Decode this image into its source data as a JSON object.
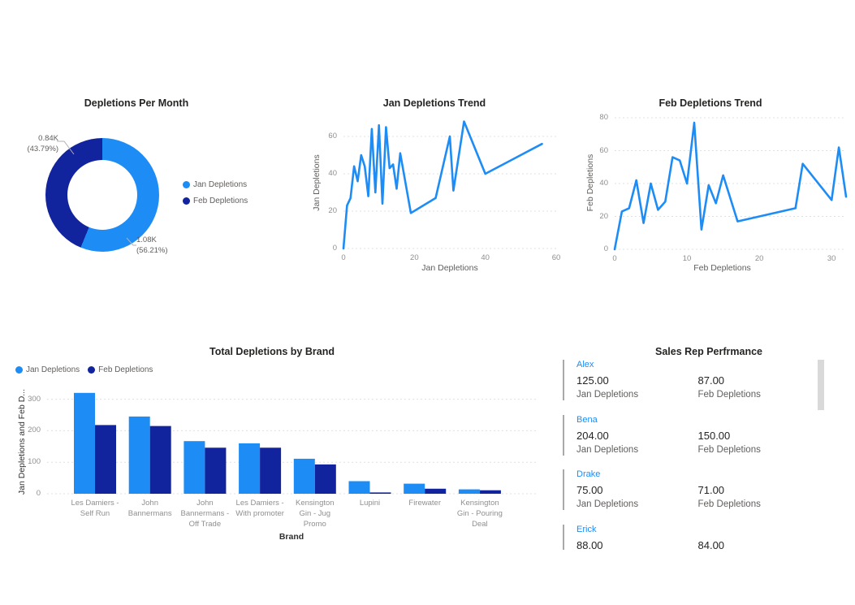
{
  "colors": {
    "jan_blue": "#1e8cf5",
    "feb_navy": "#12239e",
    "title_text": "#252423",
    "axis_gray": "#8f8f8f",
    "label_gray": "#605e5c",
    "gridline": "#e0e0e0",
    "scrollbar": "#d9d9d9"
  },
  "sales": {
    "title": "Sales Rep Perfrmance",
    "jan_label": "Jan Depletions",
    "feb_label": "Feb Depletions",
    "reps": [
      {
        "name": "Alex",
        "jan": "125.00",
        "feb": "87.00"
      },
      {
        "name": "Bena",
        "jan": "204.00",
        "feb": "150.00"
      },
      {
        "name": "Drake",
        "jan": "75.00",
        "feb": "71.00"
      },
      {
        "name": "Erick",
        "jan": "88.00",
        "feb": "84.00"
      }
    ]
  },
  "chart_data": [
    {
      "id": "depletions-per-month",
      "type": "pie",
      "donut": true,
      "title": "Depletions Per Month",
      "labels": [
        "Jan Depletions",
        "Feb Depletions"
      ],
      "values": [
        1080,
        840
      ],
      "percents": [
        56.21,
        43.79
      ],
      "colors": [
        "#1e8cf5",
        "#12239e"
      ],
      "legend_position": "right",
      "callouts": [
        {
          "series": "Feb Depletions",
          "value": "0.84K",
          "pct": "(43.79%)"
        },
        {
          "series": "Jan Depletions",
          "value": "1.08K",
          "pct": "(56.21%)"
        }
      ]
    },
    {
      "id": "jan-depletions-trend",
      "type": "line",
      "title": "Jan Depletions Trend",
      "xlabel": "Jan Depletions",
      "ylabel": "Jan Depletions",
      "xlim": [
        0,
        60
      ],
      "ylim": [
        0,
        70
      ],
      "xticks": [
        0,
        20,
        40,
        60
      ],
      "yticks": [
        0,
        20,
        40,
        60
      ],
      "grid": true,
      "color": "#1e8cf5",
      "points": [
        [
          0,
          0
        ],
        [
          1,
          23
        ],
        [
          2,
          27
        ],
        [
          3,
          44
        ],
        [
          4,
          36
        ],
        [
          5,
          50
        ],
        [
          6,
          44
        ],
        [
          7,
          28
        ],
        [
          8,
          64
        ],
        [
          9,
          30
        ],
        [
          10,
          66
        ],
        [
          11,
          24
        ],
        [
          12,
          65
        ],
        [
          13,
          43
        ],
        [
          14,
          45
        ],
        [
          15,
          32
        ],
        [
          16,
          51
        ],
        [
          19,
          19
        ],
        [
          26,
          27
        ],
        [
          30,
          60
        ],
        [
          31,
          31
        ],
        [
          34,
          68
        ],
        [
          40,
          40
        ],
        [
          56,
          56
        ]
      ]
    },
    {
      "id": "feb-depletions-trend",
      "type": "line",
      "title": "Feb Depletions Trend",
      "xlabel": "Feb Depletions",
      "ylabel": "Feb Depletions",
      "xlim": [
        0,
        32
      ],
      "ylim": [
        0,
        80
      ],
      "xticks": [
        0,
        10,
        20,
        30
      ],
      "yticks": [
        0,
        20,
        40,
        60,
        80
      ],
      "grid": true,
      "color": "#1e8cf5",
      "points": [
        [
          0,
          0
        ],
        [
          1,
          23
        ],
        [
          2,
          25
        ],
        [
          3,
          42
        ],
        [
          4,
          16
        ],
        [
          5,
          40
        ],
        [
          6,
          24
        ],
        [
          7,
          29
        ],
        [
          8,
          56
        ],
        [
          9,
          54
        ],
        [
          10,
          40
        ],
        [
          11,
          77
        ],
        [
          12,
          12
        ],
        [
          13,
          39
        ],
        [
          14,
          28
        ],
        [
          15,
          45
        ],
        [
          17,
          17
        ],
        [
          25,
          25
        ],
        [
          26,
          52
        ],
        [
          30,
          30
        ],
        [
          31,
          62
        ],
        [
          32,
          32
        ]
      ]
    },
    {
      "id": "total-depletions-by-brand",
      "type": "bar",
      "title": "Total Depletions by Brand",
      "xlabel": "Brand",
      "ylabel": "Jan Depletions and Feb D...",
      "ylim": [
        0,
        335
      ],
      "yticks": [
        0,
        100,
        200,
        300
      ],
      "grid": true,
      "legend_position": "top-left",
      "categories": [
        "Les Damiers - Self Run",
        "John Bannermans",
        "John Bannermans - Off Trade",
        "Les Damiers - With promoter",
        "Kensington Gin - Jug Promo",
        "Lupini",
        "Firewater",
        "Kensington Gin - Pouring Deal"
      ],
      "category_lines": [
        [
          "Les Damiers -",
          "Self Run"
        ],
        [
          "John",
          "Bannermans"
        ],
        [
          "John",
          "Bannermans -",
          "Off Trade"
        ],
        [
          "Les Damiers -",
          "With promoter"
        ],
        [
          "Kensington",
          "Gin - Jug",
          "Promo"
        ],
        [
          "Lupini"
        ],
        [
          "Firewater"
        ],
        [
          "Kensington",
          "Gin - Pouring",
          "Deal"
        ]
      ],
      "series": [
        {
          "name": "Jan Depletions",
          "color": "#1e8cf5",
          "values": [
            320,
            245,
            167,
            160,
            111,
            40,
            32,
            14
          ]
        },
        {
          "name": "Feb Depletions",
          "color": "#12239e",
          "values": [
            218,
            215,
            146,
            146,
            93,
            4,
            16,
            11
          ]
        }
      ]
    }
  ]
}
